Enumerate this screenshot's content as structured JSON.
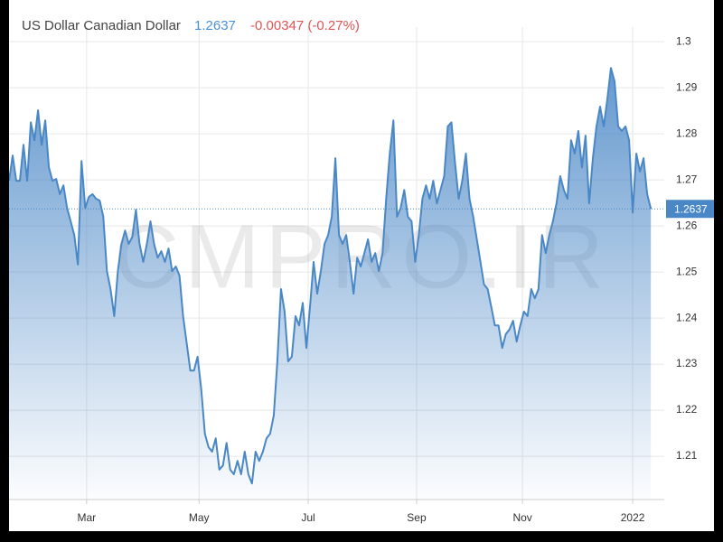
{
  "chart_data": {
    "type": "area",
    "title": "US Dollar Canadian Dollar",
    "last_price": "1.2637",
    "change": "-0.00347 (-0.27%)",
    "watermark": "CMPRO.IR",
    "color": "#4a87c6",
    "marker_value": 1.2637,
    "values": [
      1.2698,
      1.2753,
      1.2698,
      1.2698,
      1.2776,
      1.2698,
      1.2825,
      1.2786,
      1.2851,
      1.2776,
      1.2829,
      1.2727,
      1.2698,
      1.2702,
      1.2669,
      1.2688,
      1.2639,
      1.261,
      1.258,
      1.2516,
      1.2741,
      1.2639,
      1.2663,
      1.2669,
      1.2659,
      1.2655,
      1.262,
      1.2502,
      1.2463,
      1.2404,
      1.2502,
      1.2561,
      1.259,
      1.2561,
      1.2576,
      1.2635,
      1.2561,
      1.2522,
      1.2561,
      1.261,
      1.2561,
      1.2531,
      1.2545,
      1.2522,
      1.2551,
      1.2502,
      1.2512,
      1.2492,
      1.2404,
      1.2345,
      1.2286,
      1.2286,
      1.2316,
      1.2247,
      1.2149,
      1.212,
      1.211,
      1.2139,
      1.2071,
      1.208,
      1.2129,
      1.2071,
      1.2061,
      1.209,
      1.2061,
      1.211,
      1.2061,
      1.2041,
      1.211,
      1.209,
      1.211,
      1.2139,
      1.2149,
      1.2188,
      1.2306,
      1.2463,
      1.2414,
      1.2306,
      1.2316,
      1.2404,
      1.2384,
      1.2433,
      1.2335,
      1.2424,
      1.2522,
      1.2453,
      1.2502,
      1.2561,
      1.258,
      1.262,
      1.2747,
      1.258,
      1.2561,
      1.258,
      1.2522,
      1.2453,
      1.2531,
      1.2512,
      1.2541,
      1.2571,
      1.2522,
      1.2541,
      1.2502,
      1.2541,
      1.2659,
      1.2757,
      1.2829,
      1.262,
      1.2639,
      1.2678,
      1.262,
      1.261,
      1.2522,
      1.258,
      1.2659,
      1.2688,
      1.2659,
      1.2698,
      1.2649,
      1.2678,
      1.2708,
      1.2816,
      1.2825,
      1.2737,
      1.2659,
      1.2698,
      1.2757,
      1.2659,
      1.262,
      1.2571,
      1.2522,
      1.2473,
      1.2463,
      1.2424,
      1.2384,
      1.2384,
      1.2335,
      1.2365,
      1.2375,
      1.2394,
      1.2349,
      1.2384,
      1.2414,
      1.2404,
      1.2463,
      1.2443,
      1.2463,
      1.258,
      1.2541,
      1.258,
      1.261,
      1.2649,
      1.2708,
      1.2678,
      1.2659,
      1.2786,
      1.2757,
      1.2806,
      1.2727,
      1.2796,
      1.2649,
      1.2747,
      1.2816,
      1.2859,
      1.2816,
      1.2875,
      1.2943,
      1.2914,
      1.2816,
      1.2806,
      1.2816,
      1.2786,
      1.2629,
      1.2757,
      1.2718,
      1.2747,
      1.2669,
      1.2637
    ],
    "xlim": [
      0,
      180.7
    ],
    "xticks": [
      {
        "value": 21.4,
        "label": "Mar"
      },
      {
        "value": 52.4,
        "label": "May"
      },
      {
        "value": 82.5,
        "label": "Jul"
      },
      {
        "value": 112.4,
        "label": "Sep"
      },
      {
        "value": 141.6,
        "label": "Nov"
      },
      {
        "value": 172,
        "label": "2022"
      }
    ],
    "ylim": [
      1.2006,
      1.3012
    ],
    "yticks": [
      1.21,
      1.22,
      1.23,
      1.24,
      1.25,
      1.26,
      1.27,
      1.28,
      1.29,
      {
        "value": 1.3,
        "label": "1.3"
      }
    ],
    "grid": true
  }
}
